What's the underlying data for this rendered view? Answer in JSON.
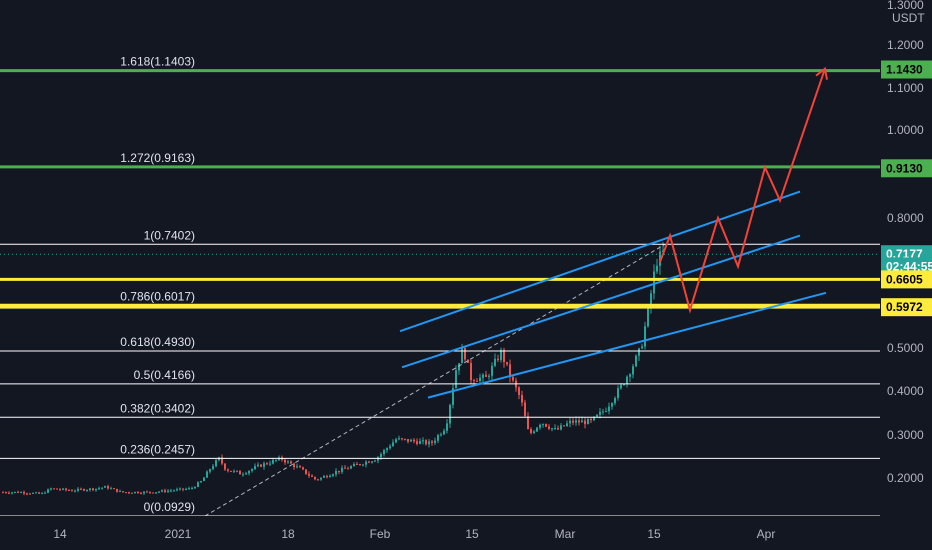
{
  "chart_data": {
    "type": "candlestick",
    "currency": "USDT",
    "y_axis": {
      "ticks": [
        "1.3000",
        "1.2000",
        "1.1000",
        "1.0000",
        "0.8000",
        "0.5000",
        "0.4000",
        "0.3000",
        "0.2000"
      ],
      "tick_values": [
        1.3,
        1.2,
        1.1,
        1.0,
        0.8,
        0.5,
        0.4,
        0.3,
        0.2
      ]
    },
    "x_axis": {
      "labels": [
        "14",
        "2021",
        "18",
        "Feb",
        "15",
        "Mar",
        "15",
        "Apr"
      ]
    },
    "fib_levels": [
      {
        "label": "1.618(1.1403)",
        "value": 1.1403,
        "color": "#4caf50"
      },
      {
        "label": "1.272(0.9163)",
        "value": 0.9163,
        "color": "#4caf50"
      },
      {
        "label": "1(0.7402)",
        "value": 0.7402,
        "color": "#ffffff"
      },
      {
        "label": "0.786(0.6017)",
        "value": 0.6017,
        "color": "#ffeb3b"
      },
      {
        "label": "0.618(0.4930)",
        "value": 0.493,
        "color": "#ffffff"
      },
      {
        "label": "0.5(0.4166)",
        "value": 0.4166,
        "color": "#ffffff"
      },
      {
        "label": "0.382(0.3402)",
        "value": 0.3402,
        "color": "#ffffff"
      },
      {
        "label": "0.236(0.2457)",
        "value": 0.2457,
        "color": "#ffffff"
      },
      {
        "label": "0(0.0929)",
        "value": 0.0929,
        "color": "#ffffff"
      }
    ],
    "highlight_lines": [
      {
        "value": 0.6605,
        "color": "#ffeb3b"
      },
      {
        "value": 0.5972,
        "color": "#ffeb3b"
      }
    ],
    "price_tags": [
      {
        "text": "1.1430",
        "value": 1.143,
        "bg": "#4caf50",
        "fg": "#000000"
      },
      {
        "text": "0.9130",
        "value": 0.913,
        "bg": "#4caf50",
        "fg": "#000000"
      },
      {
        "text": "0.7177",
        "value": 0.7177,
        "bg": "#26a69a",
        "fg": "#ffffff"
      },
      {
        "text": "02:44:55",
        "value": 0.69,
        "bg": "#26a69a",
        "fg": "#ffffff"
      },
      {
        "text": "0.6605",
        "value": 0.6605,
        "bg": "#ffeb3b",
        "fg": "#000000"
      },
      {
        "text": "0.5972",
        "value": 0.5972,
        "bg": "#ffeb3b",
        "fg": "#000000"
      }
    ],
    "current_price": 0.7177,
    "candle_color_up": "#26a69a",
    "candle_color_down": "#ef5350",
    "channel_color": "#2196f3",
    "projection_color": "#f44336"
  }
}
